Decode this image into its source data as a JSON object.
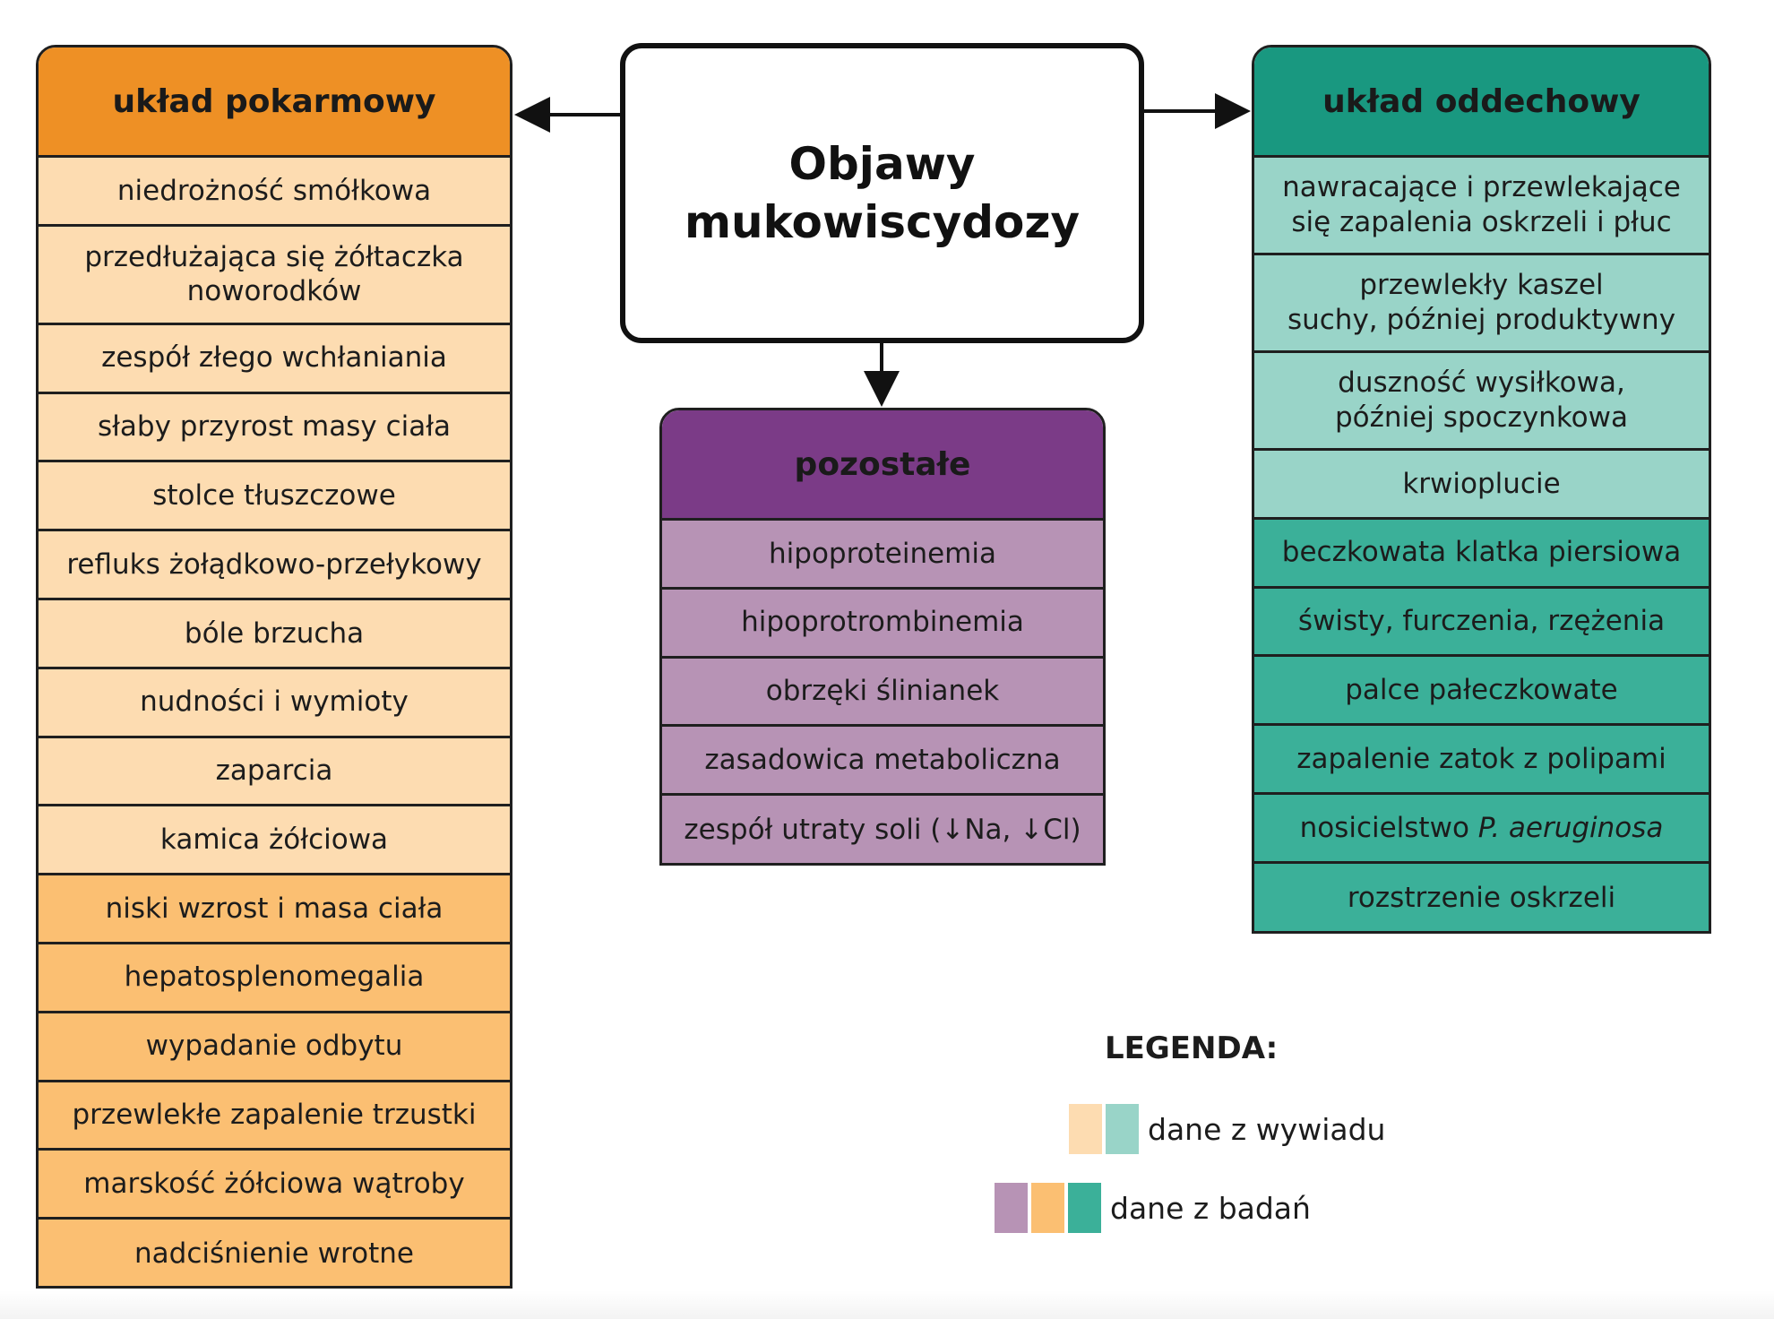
{
  "title": [
    "Objawy",
    "mukowiscydozy"
  ],
  "digestive": {
    "heading": "układ pokarmowy",
    "items": [
      {
        "text": "niedrożność smółkowa",
        "source": "wywiad"
      },
      {
        "text": "przedłużająca się żółtaczka noworodków",
        "source": "wywiad"
      },
      {
        "text": "zespół złego wchłaniania",
        "source": "wywiad"
      },
      {
        "text": "słaby przyrost masy ciała",
        "source": "wywiad"
      },
      {
        "text": "stolce tłuszczowe",
        "source": "wywiad"
      },
      {
        "text": "refluks żołądkowo-przełykowy",
        "source": "wywiad"
      },
      {
        "text": "bóle brzucha",
        "source": "wywiad"
      },
      {
        "text": "nudności i wymioty",
        "source": "wywiad"
      },
      {
        "text": "zaparcia",
        "source": "wywiad"
      },
      {
        "text": "kamica żółciowa",
        "source": "wywiad"
      },
      {
        "text": "niski wzrost i masa ciała",
        "source": "badania"
      },
      {
        "text": "hepatosplenomegalia",
        "source": "badania"
      },
      {
        "text": "wypadanie odbytu",
        "source": "badania"
      },
      {
        "text": "przewlekłe zapalenie trzustki",
        "source": "badania"
      },
      {
        "text": "marskość żółciowa wątroby",
        "source": "badania"
      },
      {
        "text": "nadciśnienie wrotne",
        "source": "badania"
      }
    ]
  },
  "respiratory": {
    "heading": "układ oddechowy",
    "items": [
      {
        "lines": [
          "nawracające i przewlekające",
          "się zapalenia oskrzeli i płuc"
        ],
        "source": "wywiad"
      },
      {
        "lines": [
          "przewlekły kaszel",
          "suchy, później produktywny"
        ],
        "source": "wywiad"
      },
      {
        "lines": [
          "duszność wysiłkowa,",
          "później spoczynkowa"
        ],
        "source": "wywiad"
      },
      {
        "lines": [
          "krwioplucie"
        ],
        "source": "wywiad"
      },
      {
        "lines": [
          "beczkowata klatka piersiowa"
        ],
        "source": "badania"
      },
      {
        "lines": [
          "świsty, furczenia, rzężenia"
        ],
        "source": "badania"
      },
      {
        "lines": [
          "palce pałeczkowate"
        ],
        "source": "badania"
      },
      {
        "lines": [
          "zapalenie zatok z polipami"
        ],
        "source": "badania"
      },
      {
        "lines": [
          "nosicielstwo ",
          "P. aeruginosa"
        ],
        "source": "badania",
        "italic_second": true
      },
      {
        "lines": [
          "rozstrzenie oskrzeli"
        ],
        "source": "badania"
      }
    ]
  },
  "other": {
    "heading": "pozostałe",
    "items": [
      "hipoproteinemia",
      "hipoprotrombinemia",
      "obrzęki ślinianek",
      "zasadowica metaboliczna",
      "zespół utraty soli (↓Na, ↓Cl)"
    ]
  },
  "legend": {
    "title": "LEGENDA:",
    "interview_label": "dane z wywiadu",
    "exam_label": "dane z badań"
  },
  "colors": {
    "digestive_header": "#ee9025",
    "digestive_interview": "#fddcb1",
    "digestive_exam": "#fbbf72",
    "respiratory_header": "#199880",
    "respiratory_interview": "#99d4c8",
    "respiratory_exam": "#3bb099",
    "other_header": "#7b3b87",
    "other_exam": "#b793b5"
  }
}
